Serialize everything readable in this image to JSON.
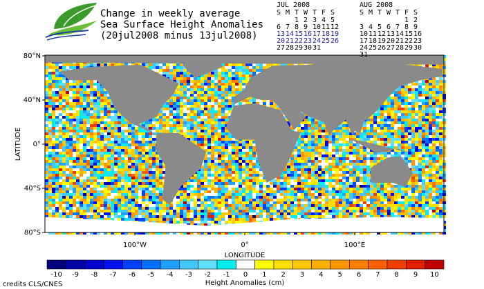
{
  "header": {
    "title_lines": [
      "Change in weekly average",
      "Sea Surface Height Anomalies",
      "(20jul2008 minus 13jul2008)"
    ]
  },
  "calendars": [
    {
      "title": "JUL 2008",
      "weekdays": [
        "S",
        "M",
        "T",
        "W",
        "T",
        "F",
        "S"
      ],
      "highlight_weeks": [
        2,
        3
      ],
      "highlight_color": "#1a1aa0",
      "weeks": [
        [
          null,
          null,
          1,
          2,
          3,
          4,
          5
        ],
        [
          6,
          7,
          8,
          9,
          10,
          11,
          12
        ],
        [
          13,
          14,
          15,
          16,
          17,
          18,
          19
        ],
        [
          20,
          21,
          22,
          23,
          24,
          25,
          26
        ],
        [
          27,
          28,
          29,
          30,
          31,
          null,
          null
        ]
      ]
    },
    {
      "title": "AUG 2008",
      "weekdays": [
        "S",
        "M",
        "T",
        "W",
        "T",
        "F",
        "S"
      ],
      "highlight_weeks": [],
      "highlight_color": "#1a1aa0",
      "weeks": [
        [
          null,
          null,
          null,
          null,
          null,
          1,
          2
        ],
        [
          3,
          4,
          5,
          6,
          7,
          8,
          9
        ],
        [
          10,
          11,
          12,
          13,
          14,
          15,
          16
        ],
        [
          17,
          18,
          19,
          20,
          21,
          22,
          23
        ],
        [
          24,
          25,
          26,
          27,
          28,
          29,
          30
        ],
        [
          31,
          null,
          null,
          null,
          null,
          null,
          null
        ]
      ]
    }
  ],
  "map": {
    "y_axis_title": "LATITUDE",
    "x_axis_title": "LONGITUDE",
    "lat_ticks": [
      {
        "value": 80,
        "label": "80°N"
      },
      {
        "value": 40,
        "label": "40°N"
      },
      {
        "value": 0,
        "label": "0°"
      },
      {
        "value": -40,
        "label": "40°S"
      },
      {
        "value": -80,
        "label": "80°S"
      }
    ],
    "lon_ticks": [
      {
        "value": -100,
        "label": "100°W"
      },
      {
        "value": 0,
        "label": "0°"
      },
      {
        "value": 100,
        "label": "100°E"
      }
    ]
  },
  "colorbar": {
    "title": "Height Anomalies (cm)",
    "ticks": [
      -10,
      -9,
      -8,
      -7,
      -6,
      -5,
      -4,
      -3,
      -2,
      -1,
      0,
      1,
      2,
      3,
      4,
      5,
      6,
      7,
      8,
      9,
      10
    ],
    "colors": [
      "#00007a",
      "#0000a8",
      "#0000d0",
      "#0010f0",
      "#0040ff",
      "#0070ff",
      "#20a0ff",
      "#40c8ff",
      "#60e0ff",
      "#00f0f0",
      "#ffffff",
      "#ffff00",
      "#ffe000",
      "#ffc800",
      "#ffb000",
      "#ff9800",
      "#ff8000",
      "#ff6000",
      "#f04000",
      "#e02000",
      "#c00000"
    ]
  },
  "footer": {
    "credits": "credits CLS/CNES"
  }
}
